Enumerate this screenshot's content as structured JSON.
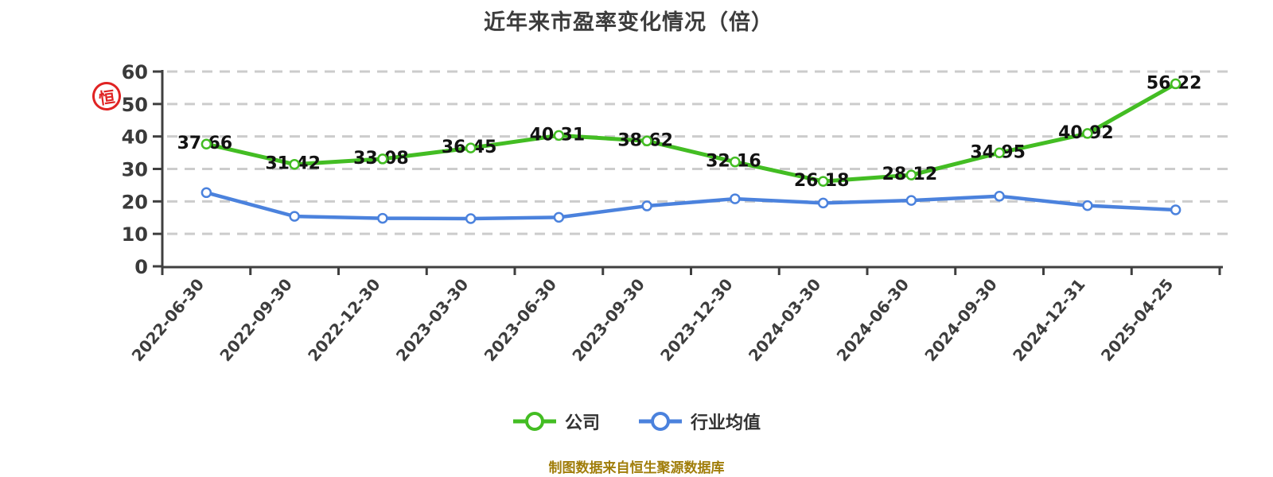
{
  "watermark": {
    "char": "恒",
    "color": "#e02323",
    "icon": "red-seal-icon"
  },
  "footer": {
    "text": "制图数据来自恒生聚源数据库"
  },
  "chart_data": {
    "type": "line",
    "title": "近年来市盈率变化情况（倍）",
    "x": [
      "2022-06-30",
      "2022-09-30",
      "2022-12-30",
      "2023-03-30",
      "2023-06-30",
      "2023-09-30",
      "2023-12-30",
      "2024-03-30",
      "2024-06-30",
      "2024-09-30",
      "2024-12-31",
      "2025-04-25"
    ],
    "series": [
      {
        "name": "公司",
        "color": "#43bd23",
        "values": [
          37.66,
          31.42,
          33.08,
          36.45,
          40.31,
          38.62,
          32.16,
          26.18,
          28.12,
          34.95,
          40.92,
          56.22
        ],
        "labels_shown": true
      },
      {
        "name": "行业均值",
        "color": "#4b82dd",
        "values": [
          22.7,
          15.4,
          14.8,
          14.7,
          15.1,
          18.6,
          20.8,
          19.5,
          20.3,
          21.6,
          18.7,
          17.4
        ],
        "labels_shown": false
      }
    ],
    "ylim": [
      0,
      60
    ],
    "yticks": [
      0,
      10,
      20,
      30,
      40,
      50,
      60
    ],
    "grid": "horizontal-dashed",
    "legend_position": "bottom",
    "xlabel_rotation_deg": -50,
    "marker": "open-circle"
  }
}
